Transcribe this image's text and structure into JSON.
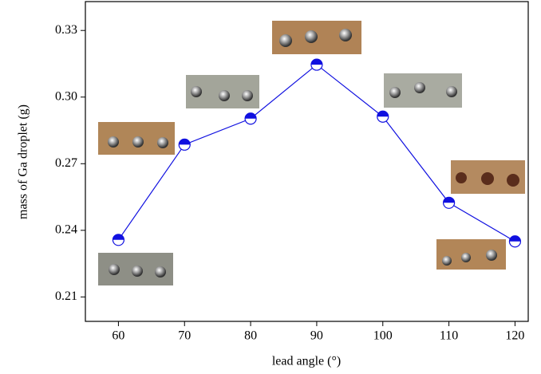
{
  "chart_data": {
    "type": "line",
    "xlabel": "lead angle (°)",
    "ylabel": "mass of Ga droplet (g)",
    "x": [
      60,
      70,
      80,
      90,
      100,
      110,
      120
    ],
    "series": [
      {
        "color": "#1010e0",
        "values": [
          0.2357,
          0.2786,
          0.2903,
          0.3146,
          0.2912,
          0.2524,
          0.235
        ]
      }
    ],
    "xlim": [
      55,
      122
    ],
    "ylim": [
      0.199,
      0.343
    ],
    "xticks": [
      60,
      70,
      80,
      90,
      100,
      110,
      120
    ],
    "yticks": [
      0.21,
      0.24,
      0.27,
      {
        "value": 0.3,
        "label": "0.30"
      },
      0.33
    ]
  }
}
